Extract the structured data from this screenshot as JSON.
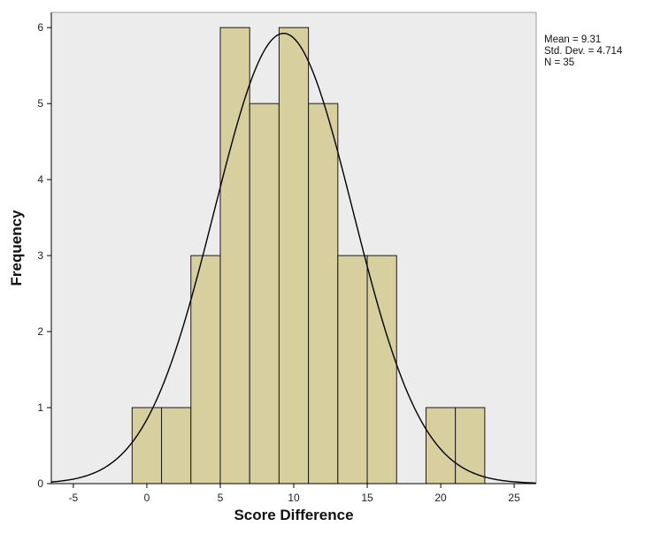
{
  "chart_data": {
    "type": "bar",
    "subtype": "histogram",
    "xlabel": "Score Difference",
    "ylabel": "Frequency",
    "xlim": [
      -6.5,
      26.5
    ],
    "ylim": [
      0,
      6.2
    ],
    "x_ticks": [
      -5,
      0,
      5,
      10,
      15,
      20,
      25
    ],
    "y_ticks": [
      0,
      1,
      2,
      3,
      4,
      5,
      6
    ],
    "bin_width": 2,
    "bins": [
      {
        "start": -1,
        "end": 1,
        "count": 1
      },
      {
        "start": 1,
        "end": 3,
        "count": 1
      },
      {
        "start": 3,
        "end": 5,
        "count": 3
      },
      {
        "start": 5,
        "end": 7,
        "count": 6
      },
      {
        "start": 7,
        "end": 9,
        "count": 5
      },
      {
        "start": 9,
        "end": 11,
        "count": 6
      },
      {
        "start": 11,
        "end": 13,
        "count": 5
      },
      {
        "start": 13,
        "end": 15,
        "count": 3
      },
      {
        "start": 15,
        "end": 17,
        "count": 3
      },
      {
        "start": 17,
        "end": 19,
        "count": 0
      },
      {
        "start": 19,
        "end": 21,
        "count": 1
      },
      {
        "start": 21,
        "end": 23,
        "count": 1
      }
    ],
    "normal_curve": {
      "mean": 9.31,
      "std_dev": 4.714,
      "n": 35
    },
    "stats_box": {
      "mean_line": "Mean = 9.31",
      "std_line": "Std. Dev. = 4.714",
      "n_line": "N = 35"
    },
    "grid": false,
    "colors": {
      "plot_background": "#ececec",
      "bar_fill": "#d7cf9d",
      "bar_stroke": "#1a1a1a",
      "curve": "#000000",
      "axis": "#000000"
    }
  }
}
